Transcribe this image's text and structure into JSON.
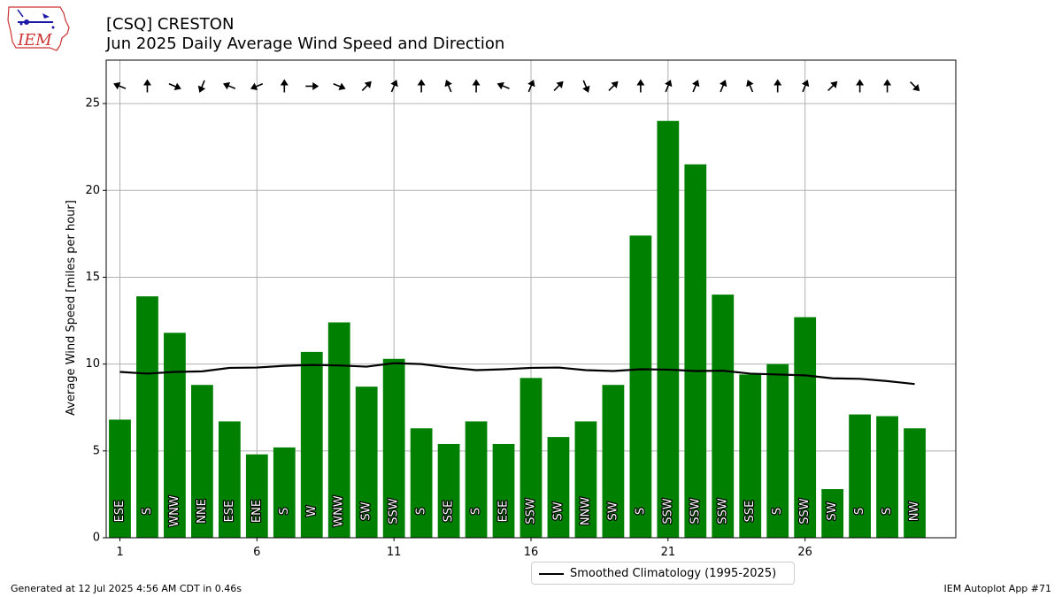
{
  "title_line1": "[CSQ] CRESTON",
  "title_line2": "Jun 2025 Daily Average Wind Speed and Direction",
  "logo_text": "IEM",
  "footer_left": "Generated at 12 Jul 2025 4:56 AM CDT in 0.46s",
  "footer_right": "IEM Autoplot App #71",
  "legend_label": "Smoothed Climatology (1995-2025)",
  "colors": {
    "bar": "#008000",
    "climo": "#000000",
    "grid": "#b0b0b0",
    "logo_red": "#cc3333",
    "logo_blue": "#1a1aa6"
  },
  "chart_data": {
    "type": "bar",
    "ylabel": "Average Wind Speed [miles per hour]",
    "xlabel": "",
    "ylim": [
      0,
      27.5
    ],
    "xlim": [
      0.5,
      31.5
    ],
    "yticks": [
      0,
      5,
      10,
      15,
      20,
      25
    ],
    "xticks": [
      1,
      6,
      11,
      16,
      21,
      26
    ],
    "grid": true,
    "legend_position": "bottom-center",
    "days": [
      1,
      2,
      3,
      4,
      5,
      6,
      7,
      8,
      9,
      10,
      11,
      12,
      13,
      14,
      15,
      16,
      17,
      18,
      19,
      20,
      21,
      22,
      23,
      24,
      25,
      26,
      27,
      28,
      29,
      30
    ],
    "values": [
      6.8,
      13.9,
      11.8,
      8.8,
      6.7,
      4.8,
      5.2,
      10.7,
      12.4,
      8.7,
      10.3,
      6.3,
      5.4,
      6.7,
      5.4,
      9.2,
      5.8,
      6.7,
      8.8,
      17.4,
      24.0,
      21.5,
      14.0,
      9.4,
      10.0,
      12.7,
      2.8,
      7.1,
      7.0,
      6.3
    ],
    "directions": [
      "ESE",
      "S",
      "WNW",
      "NNE",
      "ESE",
      "ENE",
      "S",
      "W",
      "WNW",
      "SW",
      "SSW",
      "S",
      "SSE",
      "S",
      "ESE",
      "SSW",
      "SW",
      "NNW",
      "SW",
      "S",
      "SSW",
      "SSW",
      "SSW",
      "SSE",
      "S",
      "SSW",
      "SW",
      "S",
      "S",
      "NW"
    ],
    "climatology": {
      "name": "Smoothed Climatology (1995-2025)",
      "values": [
        9.55,
        9.45,
        9.55,
        9.58,
        9.78,
        9.8,
        9.9,
        9.95,
        9.92,
        9.85,
        10.05,
        10.0,
        9.8,
        9.65,
        9.7,
        9.78,
        9.8,
        9.65,
        9.6,
        9.7,
        9.68,
        9.6,
        9.62,
        9.45,
        9.4,
        9.35,
        9.18,
        9.15,
        9.02,
        8.85
      ]
    }
  }
}
